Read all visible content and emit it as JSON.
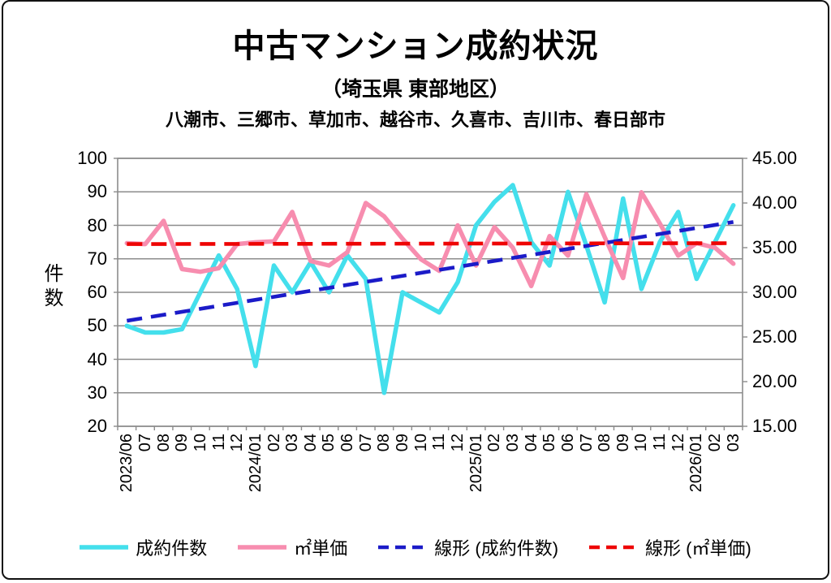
{
  "header": {
    "title": "中古マンション成約状況",
    "subtitle": "（埼玉県 東部地区）",
    "region_line": "八潮市、三郷市、草加市、越谷市、久喜市、吉川市、春日部市"
  },
  "chart_data": {
    "type": "line",
    "title": "中古マンション成約状況（埼玉県 東部地区）",
    "categories": [
      "2023/06",
      "07",
      "08",
      "09",
      "10",
      "11",
      "12",
      "2024/01",
      "02",
      "03",
      "04",
      "05",
      "06",
      "07",
      "08",
      "09",
      "10",
      "11",
      "12",
      "2025/01",
      "02",
      "03",
      "04",
      "05",
      "06",
      "07",
      "08",
      "09",
      "10",
      "11",
      "12",
      "2026/01",
      "02",
      "03"
    ],
    "series": [
      {
        "name": "成約件数",
        "axis": "left",
        "style": "solid",
        "color": "#44DFEC",
        "values": [
          50,
          48,
          48,
          49,
          60,
          71,
          61,
          38,
          68,
          60,
          69,
          60,
          71,
          64,
          30,
          60,
          57,
          54,
          63,
          80,
          87,
          92,
          75,
          68,
          90,
          74,
          57,
          88,
          61,
          75,
          84,
          64,
          75,
          86
        ]
      },
      {
        "name": "㎡単価",
        "axis": "right",
        "style": "solid",
        "color": "#F78DAF",
        "values": [
          35.5,
          35.4,
          38.0,
          32.6,
          32.3,
          32.7,
          35.4,
          35.6,
          35.7,
          39.0,
          33.5,
          33.0,
          34.5,
          40.0,
          38.5,
          36.0,
          33.7,
          32.4,
          37.5,
          33.0,
          37.3,
          35.0,
          30.7,
          36.3,
          34.1,
          41.0,
          36.2,
          31.6,
          41.2,
          37.7,
          34.1,
          35.5,
          35.0,
          33.2
        ]
      },
      {
        "name": "線形 (成約件数)",
        "axis": "left",
        "style": "dashed",
        "color": "#1B1BC8",
        "trend": [
          51.5,
          81.0
        ]
      },
      {
        "name": "線形 (㎡単価)",
        "axis": "right",
        "style": "dashed",
        "color": "#EE0404",
        "trend": [
          35.4,
          35.5
        ]
      }
    ],
    "left_axis": {
      "label": "件数",
      "min": 20,
      "max": 100,
      "ticks": [
        "100",
        "90",
        "80",
        "70",
        "60",
        "50",
        "40",
        "30",
        "20"
      ]
    },
    "right_axis": {
      "min": 15,
      "max": 45,
      "ticks": [
        "45.00",
        "40.00",
        "35.00",
        "30.00",
        "25.00",
        "20.00",
        "15.00"
      ]
    },
    "grid": true,
    "legend_position": "bottom",
    "grid_color": "#8C8C8C"
  }
}
